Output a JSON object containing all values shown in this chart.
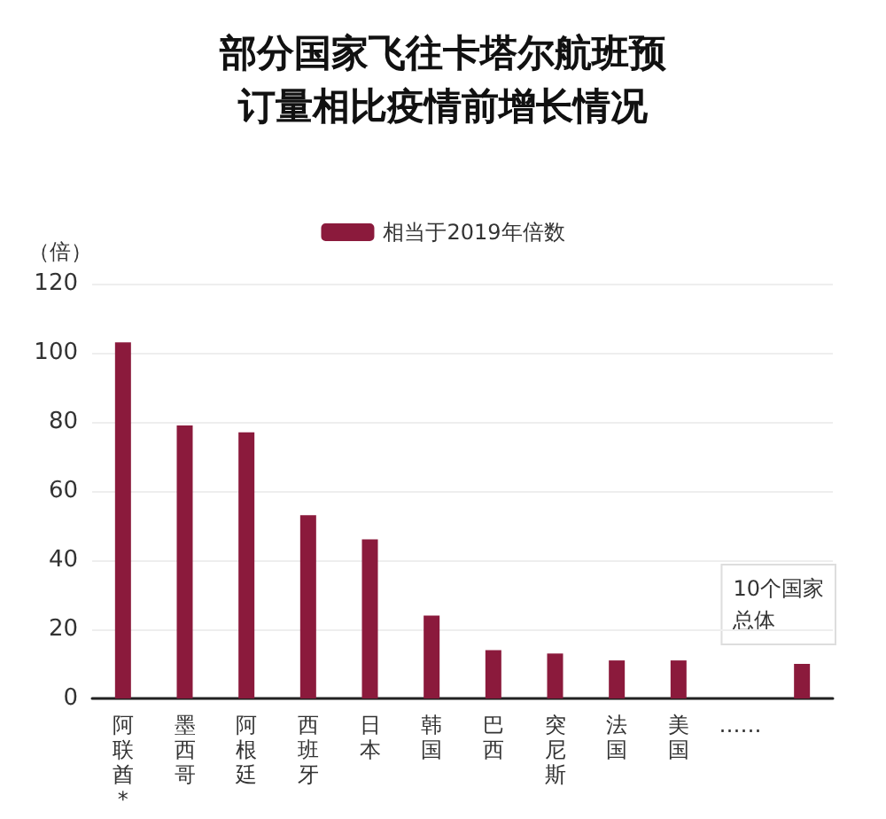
{
  "chart_data": {
    "type": "bar",
    "title": "部分国家飞往卡塔尔航班预订量相比疫情前增长情况",
    "ylabel": "（倍）",
    "categories": [
      "阿联酋*",
      "墨西哥",
      "阿根廷",
      "西班牙",
      "日本",
      "韩国",
      "巴西",
      "突尼斯",
      "法国",
      "美国",
      "……",
      null
    ],
    "series": [
      {
        "name": "相当于2019年倍数",
        "color": "#8b1a3c",
        "values": [
          103,
          79,
          77,
          53,
          46,
          24,
          14,
          13,
          11,
          11,
          null,
          10
        ]
      }
    ],
    "annotations": [
      "10个国家总体"
    ],
    "ylim": [
      0,
      120
    ],
    "yticks": [
      0,
      20,
      40,
      60,
      80,
      100,
      120
    ],
    "grid": "y",
    "legend": "top"
  }
}
